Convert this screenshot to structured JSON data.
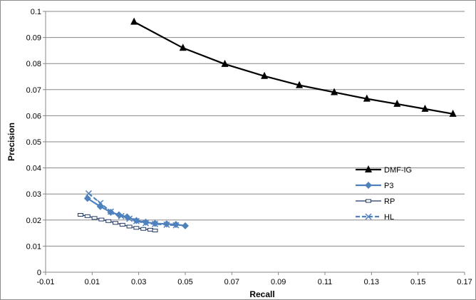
{
  "chart_data": {
    "type": "line",
    "xlabel": "Recall",
    "ylabel": "Precision",
    "xlim": [
      -0.01,
      0.17
    ],
    "ylim": [
      0,
      0.1
    ],
    "x_ticks": [
      "-0.01",
      "0.01",
      "0.03",
      "0.05",
      "0.07",
      "0.09",
      "0.11",
      "0.13",
      "0.15",
      "0.17"
    ],
    "y_ticks": [
      "0",
      "0.01",
      "0.02",
      "0.03",
      "0.04",
      "0.05",
      "0.06",
      "0.07",
      "0.08",
      "0.09",
      "0.1"
    ],
    "grid": "horizontal major",
    "legend_position": "right",
    "series": [
      {
        "name": "DMF-IG",
        "color": "#000000",
        "marker": "triangle",
        "line": "solid",
        "points": [
          [
            0.028,
            0.096
          ],
          [
            0.049,
            0.086
          ],
          [
            0.067,
            0.0798
          ],
          [
            0.084,
            0.0752
          ],
          [
            0.099,
            0.0717
          ],
          [
            0.114,
            0.069
          ],
          [
            0.128,
            0.0665
          ],
          [
            0.141,
            0.0645
          ],
          [
            0.153,
            0.0626
          ],
          [
            0.165,
            0.0607
          ]
        ]
      },
      {
        "name": "P3",
        "color": "#4f81bd",
        "marker": "diamond",
        "line": "solid",
        "points": [
          [
            0.008,
            0.0283
          ],
          [
            0.0135,
            0.0252
          ],
          [
            0.018,
            0.023
          ],
          [
            0.0215,
            0.022
          ],
          [
            0.025,
            0.0212
          ],
          [
            0.029,
            0.0198
          ],
          [
            0.033,
            0.0192
          ],
          [
            0.037,
            0.0187
          ],
          [
            0.042,
            0.0185
          ],
          [
            0.046,
            0.0183
          ],
          [
            0.05,
            0.0178
          ]
        ]
      },
      {
        "name": "RP",
        "color": "#1f3864",
        "marker": "square",
        "line": "solid",
        "points": [
          [
            0.005,
            0.022
          ],
          [
            0.008,
            0.0215
          ],
          [
            0.011,
            0.0208
          ],
          [
            0.014,
            0.0202
          ],
          [
            0.017,
            0.0196
          ],
          [
            0.02,
            0.0189
          ],
          [
            0.023,
            0.0182
          ],
          [
            0.026,
            0.0175
          ],
          [
            0.029,
            0.017
          ],
          [
            0.032,
            0.0166
          ],
          [
            0.035,
            0.0163
          ],
          [
            0.037,
            0.016
          ]
        ]
      },
      {
        "name": "HL",
        "color": "#4f81bd",
        "marker": "x",
        "line": "dashed",
        "points": [
          [
            0.0085,
            0.0302
          ],
          [
            0.0135,
            0.0265
          ],
          [
            0.018,
            0.0232
          ],
          [
            0.0225,
            0.0215
          ],
          [
            0.026,
            0.0205
          ],
          [
            0.029,
            0.0196
          ],
          [
            0.033,
            0.0188
          ],
          [
            0.037,
            0.0185
          ],
          [
            0.042,
            0.0182
          ],
          [
            0.046,
            0.018
          ]
        ]
      }
    ]
  }
}
